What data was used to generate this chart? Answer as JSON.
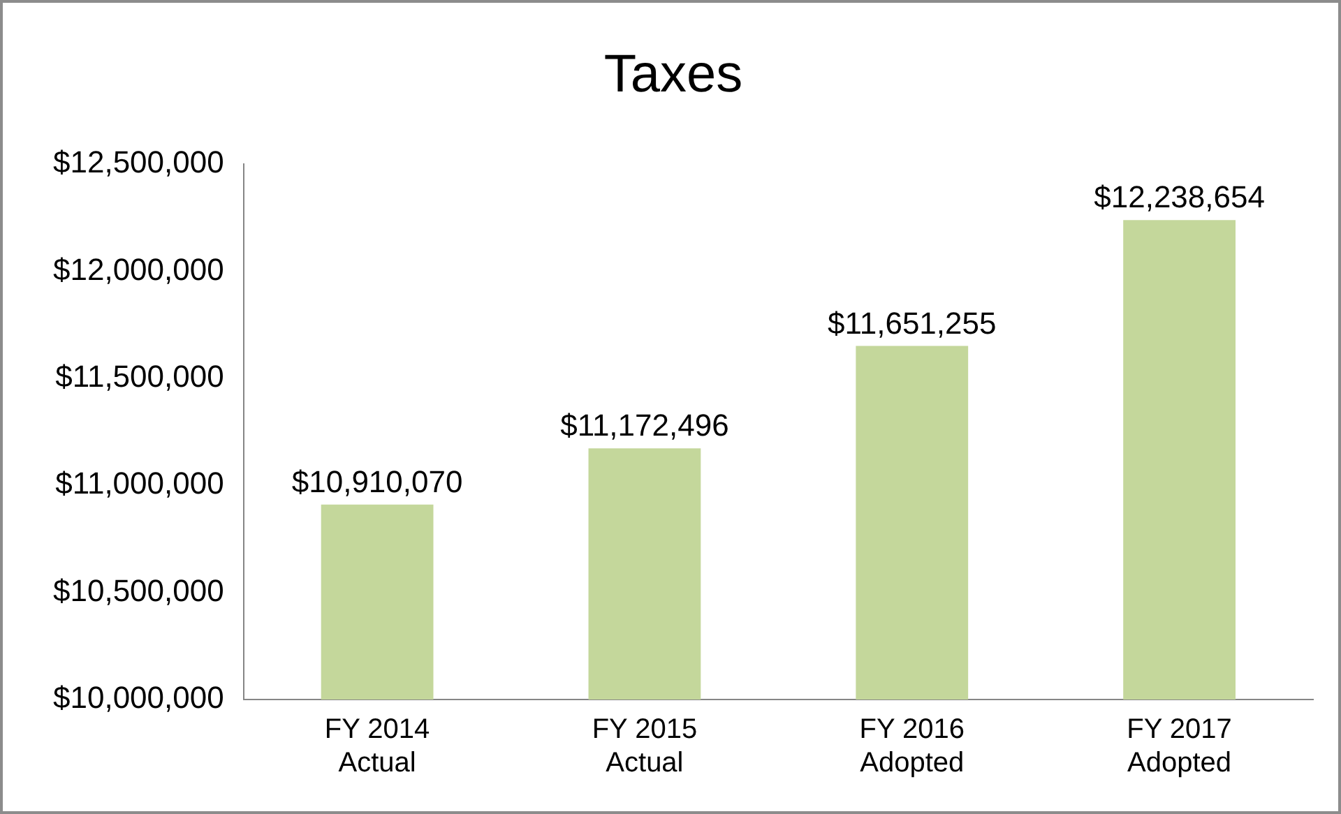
{
  "chart_data": {
    "type": "bar",
    "title": "Taxes",
    "categories": [
      "FY 2014\nActual",
      "FY 2015\nActual",
      "FY 2016\nAdopted",
      "FY 2017\nAdopted"
    ],
    "values": [
      10910070,
      11172496,
      11651255,
      12238654
    ],
    "value_labels": [
      "$10,910,070",
      "$11,172,496",
      "$11,651,255",
      "$12,238,654"
    ],
    "color": "#c4d79b",
    "ylim": [
      10000000,
      12500000
    ],
    "yticks": [
      {
        "value": 10000000,
        "label": "$10,000,000"
      },
      {
        "value": 10500000,
        "label": "$10,500,000"
      },
      {
        "value": 11000000,
        "label": "$11,000,000"
      },
      {
        "value": 11500000,
        "label": "$11,500,000"
      },
      {
        "value": 12000000,
        "label": "$12,000,000"
      },
      {
        "value": 12500000,
        "label": "$12,500,000"
      }
    ],
    "grid": false,
    "legend": false
  }
}
